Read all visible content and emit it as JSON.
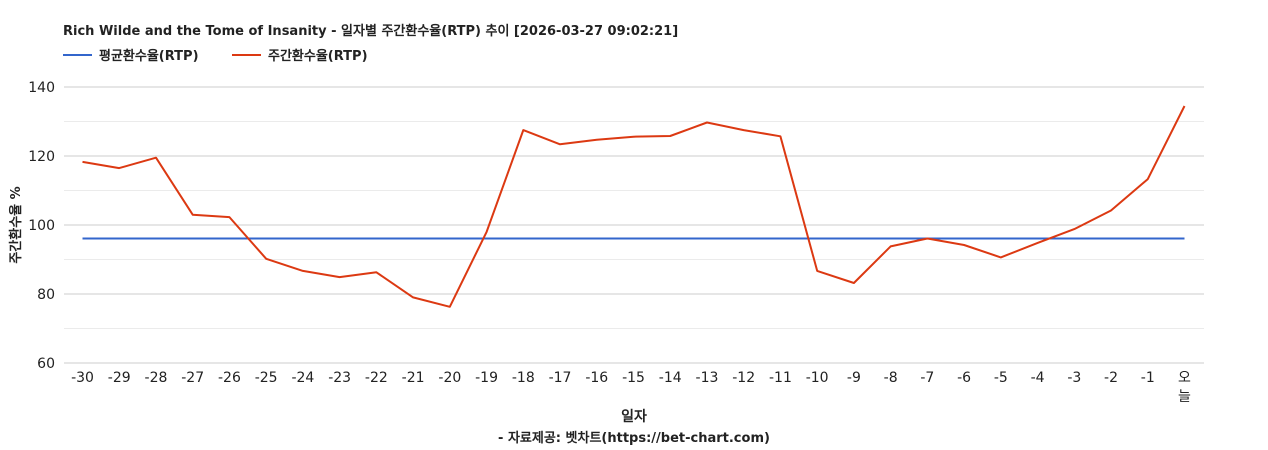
{
  "colors": {
    "average_series": "#3366cc",
    "weekly_series": "#dc3912",
    "gridline": "#cccccc",
    "minor_gridline": "#ebebeb",
    "text": "#222222"
  },
  "chart_data": {
    "type": "line",
    "title": "Rich Wilde and the Tome of Insanity - 일자별 주간환수율(RTP) 추이 [2026-03-27 09:02:21]",
    "xlabel": "일자",
    "ylabel": "주간환수율 %",
    "footer": "- 자료제공: 벳차트(https://bet-chart.com)",
    "legend_position": "top-left",
    "grid": true,
    "ylim": [
      60,
      140
    ],
    "yticks": [
      "60",
      "80",
      "100",
      "120",
      "140"
    ],
    "categories": [
      "-30",
      "-29",
      "-28",
      "-27",
      "-26",
      "-25",
      "-24",
      "-23",
      "-22",
      "-21",
      "-20",
      "-19",
      "-18",
      "-17",
      "-16",
      "-15",
      "-14",
      "-13",
      "-12",
      "-11",
      "-10",
      "-9",
      "-8",
      "-7",
      "-6",
      "-5",
      "-4",
      "-3",
      "-2",
      "-1",
      "오늘"
    ],
    "series": [
      {
        "name": "평균환수율(RTP)",
        "values": [
          96.1,
          96.1,
          96.1,
          96.1,
          96.1,
          96.1,
          96.1,
          96.1,
          96.1,
          96.1,
          96.1,
          96.1,
          96.1,
          96.1,
          96.1,
          96.1,
          96.1,
          96.1,
          96.1,
          96.1,
          96.1,
          96.1,
          96.1,
          96.1,
          96.1,
          96.1,
          96.1,
          96.1,
          96.1,
          96.1,
          96.1
        ]
      },
      {
        "name": "주간환수율(RTP)",
        "values": [
          118.3,
          116.5,
          119.5,
          103.0,
          102.3,
          90.2,
          86.7,
          84.9,
          86.3,
          79.0,
          76.3,
          98.0,
          127.5,
          123.4,
          124.7,
          125.6,
          125.8,
          129.7,
          127.5,
          125.7,
          86.7,
          83.2,
          93.8,
          96.1,
          94.2,
          90.6,
          94.8,
          98.8,
          104.2,
          113.3,
          134.5
        ]
      }
    ]
  }
}
